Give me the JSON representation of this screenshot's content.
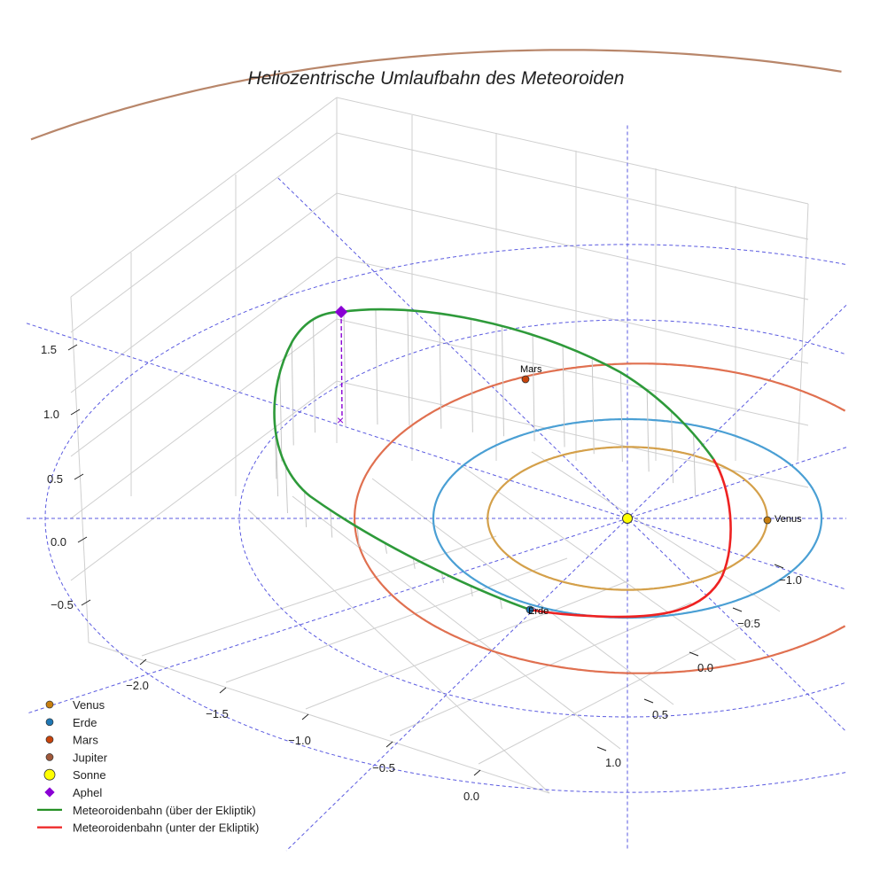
{
  "chart_data": {
    "type": "line3d",
    "title": "Heliozentrische Umlaufbahn des Meteoroiden",
    "x_ticks": [
      "−2.0",
      "−1.5",
      "−1.0",
      "−0.5",
      "0.0"
    ],
    "y_ticks": [
      "−1.0",
      "−0.5",
      "0.0",
      "0.5",
      "1.0"
    ],
    "z_ticks": [
      "1.5",
      "1.0",
      "0.5",
      "0.0",
      "−0.5"
    ],
    "planet_orbits": [
      {
        "name": "Venus",
        "radius_au": 0.72,
        "color": "#d4a04a",
        "label": "Venus"
      },
      {
        "name": "Erde",
        "radius_au": 1.0,
        "color": "#4a9fd4",
        "label": "Erde"
      },
      {
        "name": "Mars",
        "radius_au": 1.52,
        "color": "#e07050",
        "label": "Mars"
      },
      {
        "name": "Jupiter",
        "radius_au": 5.2,
        "color": "#b8866a"
      }
    ],
    "reference_circles_au": [
      1,
      2,
      3
    ],
    "radial_lines_deg_step": 30,
    "meteoroid": {
      "color_above": "#2e9a3a",
      "color_below": "#ee2222",
      "aphelion_color": "#8a00d4"
    },
    "legend": {
      "position": "bottom-left",
      "entries": [
        {
          "label": "Venus",
          "marker": "circle",
          "color": "#c87f10"
        },
        {
          "label": "Erde",
          "marker": "circle",
          "color": "#1f77b4"
        },
        {
          "label": "Mars",
          "marker": "circle",
          "color": "#c8440c"
        },
        {
          "label": "Jupiter",
          "marker": "circle",
          "color": "#a0583a"
        },
        {
          "label": "Sonne",
          "marker": "bigcircle",
          "color": "#ffff00"
        },
        {
          "label": "Aphel",
          "marker": "diamond",
          "color": "#8a00d4"
        },
        {
          "label": "Meteoroidenbahn (über der Ekliptik)",
          "marker": "line",
          "color": "#1a8a1a"
        },
        {
          "label": "Meteoroidenbahn (unter der Ekliptik)",
          "marker": "line",
          "color": "#ee2222"
        }
      ]
    }
  }
}
